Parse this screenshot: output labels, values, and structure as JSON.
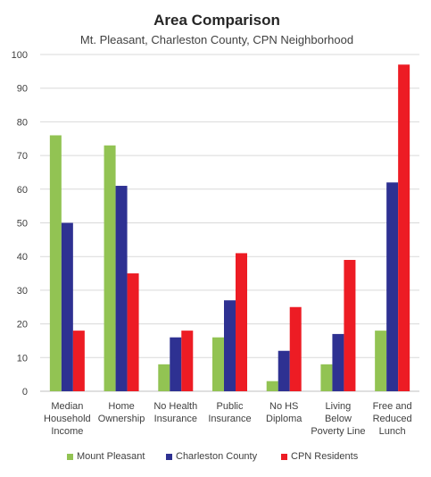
{
  "chart_data": {
    "type": "bar",
    "title": "Area Comparison",
    "subtitle": "Mt. Pleasant, Charleston County, CPN Neighborhood",
    "xlabel": "",
    "ylabel": "",
    "ylim": [
      0,
      100
    ],
    "yticks": [
      0,
      10,
      20,
      30,
      40,
      50,
      60,
      70,
      80,
      90,
      100
    ],
    "grid": true,
    "legend_position": "bottom",
    "categories": [
      [
        "Median",
        "Household",
        "Income"
      ],
      [
        "Home",
        "Ownership"
      ],
      [
        "No Health",
        "Insurance"
      ],
      [
        "Public",
        "Insurance"
      ],
      [
        "No HS",
        "Diploma"
      ],
      [
        "Living",
        "Below",
        "Poverty Line"
      ],
      [
        "Free and",
        "Reduced",
        "Lunch"
      ]
    ],
    "series": [
      {
        "name": "Mount Pleasant",
        "color": "#92c353",
        "values": [
          76,
          73,
          8,
          16,
          3,
          8,
          18
        ]
      },
      {
        "name": "Charleston County",
        "color": "#2e3192",
        "values": [
          50,
          61,
          16,
          27,
          12,
          17,
          62
        ]
      },
      {
        "name": "CPN Residents",
        "color": "#ed1c24",
        "values": [
          18,
          35,
          18,
          41,
          25,
          39,
          97
        ]
      }
    ]
  }
}
